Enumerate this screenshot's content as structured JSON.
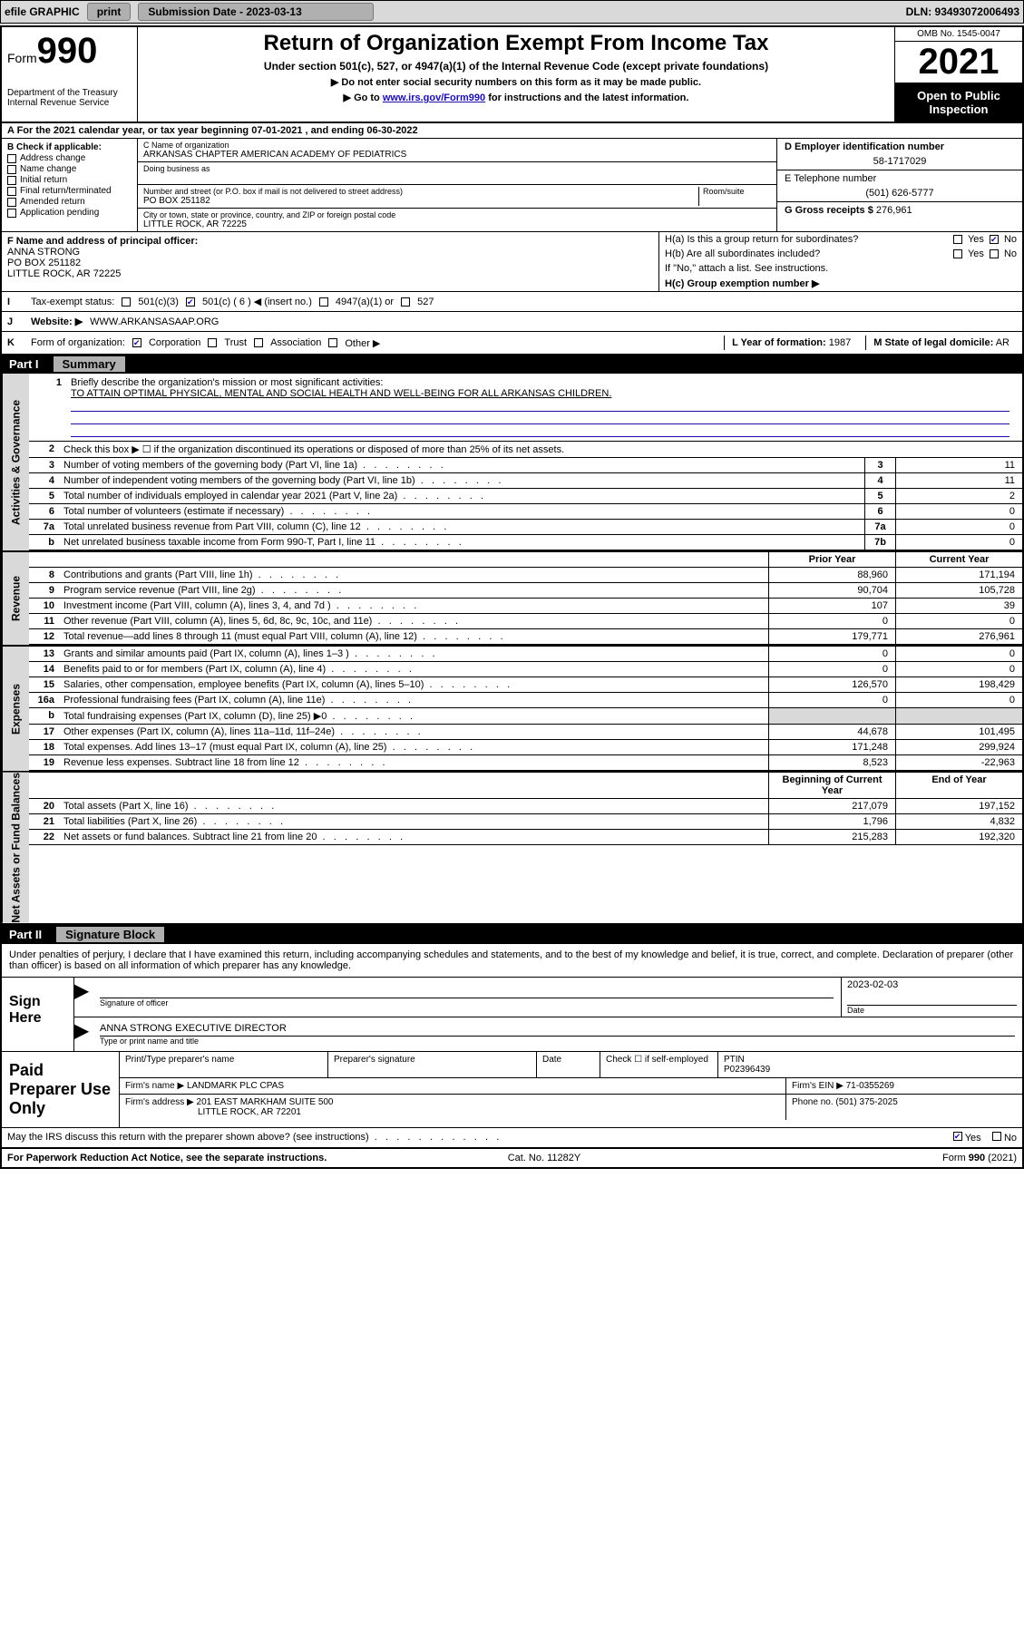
{
  "colors": {
    "accent_link": "#1a0dab",
    "header_black": "#000000",
    "grey_bg": "#d9d9d9",
    "button_bg": "#b0b0b0"
  },
  "topbar": {
    "efile_label": "efile GRAPHIC",
    "print_label": "print",
    "submission_label": "Submission Date - 2023-03-13",
    "dln_label": "DLN: 93493072006493"
  },
  "header": {
    "form_prefix": "Form",
    "form_number": "990",
    "title": "Return of Organization Exempt From Income Tax",
    "subtitle": "Under section 501(c), 527, or 4947(a)(1) of the Internal Revenue Code (except private foundations)",
    "note1": "▶ Do not enter social security numbers on this form as it may be made public.",
    "note2_prefix": "▶ Go to ",
    "note2_link": "www.irs.gov/Form990",
    "note2_suffix": " for instructions and the latest information.",
    "dept": "Department of the Treasury",
    "irs": "Internal Revenue Service",
    "omb": "OMB No. 1545-0047",
    "year": "2021",
    "open1": "Open to Public",
    "open2": "Inspection"
  },
  "rowA": {
    "text_prefix": "A For the 2021 calendar year, or tax year beginning ",
    "begin": "07-01-2021",
    "mid": " , and ending ",
    "end": "06-30-2022"
  },
  "blockB": {
    "label": "B Check if applicable:",
    "items": [
      "Address change",
      "Name change",
      "Initial return",
      "Final return/terminated",
      "Amended return",
      "Application pending"
    ]
  },
  "blockC": {
    "name_label": "C Name of organization",
    "name": "ARKANSAS CHAPTER AMERICAN ACADEMY OF PEDIATRICS",
    "dba_label": "Doing business as",
    "street_label": "Number and street (or P.O. box if mail is not delivered to street address)",
    "room_label": "Room/suite",
    "street": "PO BOX 251182",
    "city_label": "City or town, state or province, country, and ZIP or foreign postal code",
    "city": "LITTLE ROCK, AR  72225"
  },
  "blockD": {
    "label": "D Employer identification number",
    "value": "58-1717029"
  },
  "blockE": {
    "label": "E Telephone number",
    "value": "(501) 626-5777"
  },
  "blockG": {
    "label": "G Gross receipts $",
    "value": "276,961"
  },
  "blockF": {
    "label": "F  Name and address of principal officer:",
    "l1": "ANNA STRONG",
    "l2": "PO BOX 251182",
    "l3": "LITTLE ROCK, AR  72225"
  },
  "blockH": {
    "ha": "H(a)  Is this a group return for subordinates?",
    "hb": "H(b)  Are all subordinates included?",
    "hb_note": "If \"No,\" attach a list. See instructions.",
    "hc": "H(c)  Group exemption number ▶",
    "yes": "Yes",
    "no": "No"
  },
  "rowI": {
    "label": "I",
    "title": "Tax-exempt status:",
    "opts": [
      "501(c)(3)",
      "501(c) ( 6 ) ◀ (insert no.)",
      "4947(a)(1) or",
      "527"
    ],
    "checked_index": 1
  },
  "rowJ": {
    "label": "J",
    "title": "Website: ▶",
    "value": "WWW.ARKANSASAAP.ORG"
  },
  "rowK": {
    "label": "K",
    "title": "Form of organization:",
    "opts": [
      "Corporation",
      "Trust",
      "Association",
      "Other ▶"
    ],
    "checked_index": 0,
    "L_label": "L Year of formation:",
    "L_value": "1987",
    "M_label": "M State of legal domicile:",
    "M_value": "AR"
  },
  "part1": {
    "label": "Part I",
    "title": "Summary",
    "side_labels": [
      "Activities & Governance",
      "Revenue",
      "Expenses",
      "Net Assets or Fund Balances"
    ],
    "mission_label": "Briefly describe the organization's mission or most significant activities:",
    "mission": "TO ATTAIN OPTIMAL PHYSICAL, MENTAL AND SOCIAL HEALTH AND WELL-BEING FOR ALL ARKANSAS CHILDREN.",
    "line2": "Check this box ▶ ☐  if the organization discontinued its operations or disposed of more than 25% of its net assets.",
    "governance_rows": [
      {
        "n": "3",
        "text": "Number of voting members of the governing body (Part VI, line 1a)",
        "box": "3",
        "val": "11"
      },
      {
        "n": "4",
        "text": "Number of independent voting members of the governing body (Part VI, line 1b)",
        "box": "4",
        "val": "11"
      },
      {
        "n": "5",
        "text": "Total number of individuals employed in calendar year 2021 (Part V, line 2a)",
        "box": "5",
        "val": "2"
      },
      {
        "n": "6",
        "text": "Total number of volunteers (estimate if necessary)",
        "box": "6",
        "val": "0"
      },
      {
        "n": "7a",
        "text": "Total unrelated business revenue from Part VIII, column (C), line 12",
        "box": "7a",
        "val": "0"
      },
      {
        "n": "b",
        "text": "Net unrelated business taxable income from Form 990-T, Part I, line 11",
        "box": "7b",
        "val": "0"
      }
    ],
    "col_headers": {
      "prior": "Prior Year",
      "current": "Current Year"
    },
    "revenue_rows": [
      {
        "n": "8",
        "text": "Contributions and grants (Part VIII, line 1h)",
        "prior": "88,960",
        "cur": "171,194"
      },
      {
        "n": "9",
        "text": "Program service revenue (Part VIII, line 2g)",
        "prior": "90,704",
        "cur": "105,728"
      },
      {
        "n": "10",
        "text": "Investment income (Part VIII, column (A), lines 3, 4, and 7d )",
        "prior": "107",
        "cur": "39"
      },
      {
        "n": "11",
        "text": "Other revenue (Part VIII, column (A), lines 5, 6d, 8c, 9c, 10c, and 11e)",
        "prior": "0",
        "cur": "0"
      },
      {
        "n": "12",
        "text": "Total revenue—add lines 8 through 11 (must equal Part VIII, column (A), line 12)",
        "prior": "179,771",
        "cur": "276,961"
      }
    ],
    "expense_rows": [
      {
        "n": "13",
        "text": "Grants and similar amounts paid (Part IX, column (A), lines 1–3 )",
        "prior": "0",
        "cur": "0"
      },
      {
        "n": "14",
        "text": "Benefits paid to or for members (Part IX, column (A), line 4)",
        "prior": "0",
        "cur": "0"
      },
      {
        "n": "15",
        "text": "Salaries, other compensation, employee benefits (Part IX, column (A), lines 5–10)",
        "prior": "126,570",
        "cur": "198,429"
      },
      {
        "n": "16a",
        "text": "Professional fundraising fees (Part IX, column (A), line 11e)",
        "prior": "0",
        "cur": "0"
      },
      {
        "n": "b",
        "text": "Total fundraising expenses (Part IX, column (D), line 25) ▶0",
        "prior": "__grey__",
        "cur": "__grey__"
      },
      {
        "n": "17",
        "text": "Other expenses (Part IX, column (A), lines 11a–11d, 11f–24e)",
        "prior": "44,678",
        "cur": "101,495"
      },
      {
        "n": "18",
        "text": "Total expenses. Add lines 13–17 (must equal Part IX, column (A), line 25)",
        "prior": "171,248",
        "cur": "299,924"
      },
      {
        "n": "19",
        "text": "Revenue less expenses. Subtract line 18 from line 12",
        "prior": "8,523",
        "cur": "-22,963"
      }
    ],
    "net_headers": {
      "begin": "Beginning of Current Year",
      "end": "End of Year"
    },
    "net_rows": [
      {
        "n": "20",
        "text": "Total assets (Part X, line 16)",
        "prior": "217,079",
        "cur": "197,152"
      },
      {
        "n": "21",
        "text": "Total liabilities (Part X, line 26)",
        "prior": "1,796",
        "cur": "4,832"
      },
      {
        "n": "22",
        "text": "Net assets or fund balances. Subtract line 21 from line 20",
        "prior": "215,283",
        "cur": "192,320"
      }
    ]
  },
  "part2": {
    "label": "Part II",
    "title": "Signature Block",
    "declaration": "Under penalties of perjury, I declare that I have examined this return, including accompanying schedules and statements, and to the best of my knowledge and belief, it is true, correct, and complete. Declaration of preparer (other than officer) is based on all information of which preparer has any knowledge.",
    "sign_here": "Sign Here",
    "sig_officer_label": "Signature of officer",
    "date_label": "Date",
    "officer_date": "2023-02-03",
    "officer_name_line": "ANNA STRONG  EXECUTIVE DIRECTOR",
    "name_title_label": "Type or print name and title",
    "paid_label": "Paid Preparer Use Only",
    "prep_headers": [
      "Print/Type preparer's name",
      "Preparer's signature",
      "Date"
    ],
    "check_if_label": "Check ☐ if self-employed",
    "ptin_label": "PTIN",
    "ptin": "P02396439",
    "firm_name_label": "Firm's name    ▶",
    "firm_name": "LANDMARK PLC CPAS",
    "firm_ein_label": "Firm's EIN ▶",
    "firm_ein": "71-0355269",
    "firm_addr_label": "Firm's address ▶",
    "firm_addr1": "201 EAST MARKHAM SUITE 500",
    "firm_addr2": "LITTLE ROCK, AR  72201",
    "phone_label": "Phone no.",
    "phone": "(501) 375-2025",
    "discuss": "May the IRS discuss this return with the preparer shown above? (see instructions)",
    "yes": "Yes",
    "no": "No"
  },
  "footer": {
    "left": "For Paperwork Reduction Act Notice, see the separate instructions.",
    "mid": "Cat. No. 11282Y",
    "right_prefix": "Form ",
    "right_form": "990",
    "right_suffix": " (2021)"
  }
}
